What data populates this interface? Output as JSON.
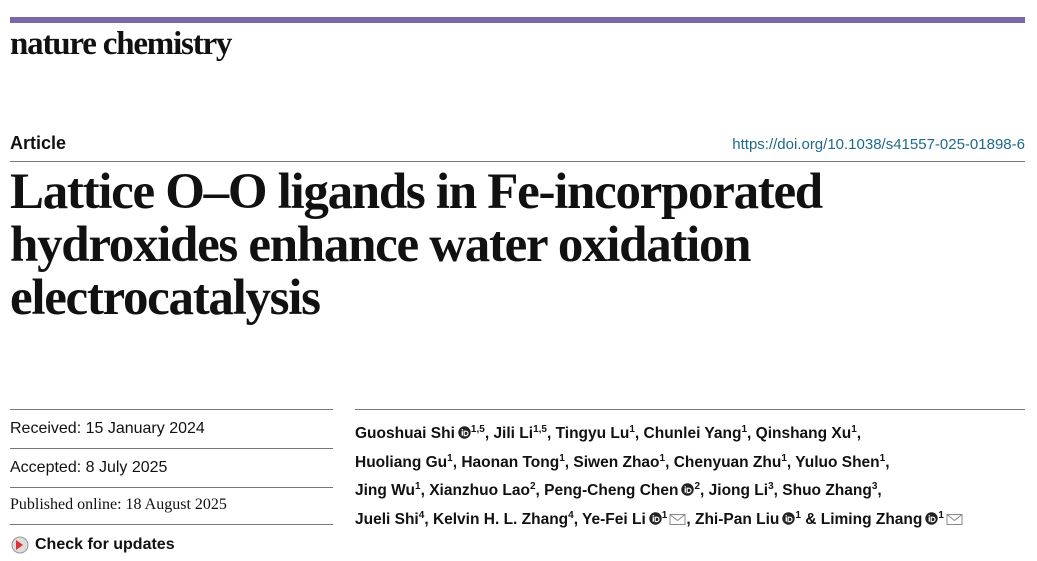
{
  "journal": "nature chemistry",
  "article_type": "Article",
  "doi": "https://doi.org/10.1038/s41557-025-01898-6",
  "title": [
    "Lattice O–O ligands in Fe-incorporated",
    "hydroxides enhance water oxidation",
    "electrocatalysis"
  ],
  "dates": {
    "received": "Received: 15 January 2024",
    "accepted": "Accepted: 8 July 2025",
    "published": "Published online: 18 August 2025"
  },
  "check_updates": "Check for updates",
  "author_lines": [
    [
      {
        "name": "Guoshuai Shi",
        "orcid": true,
        "sup": "1,5",
        "sep": ","
      },
      {
        "name": "Jili Li",
        "sup": "1,5",
        "sep": ","
      },
      {
        "name": "Tingyu Lu",
        "sup": "1",
        "sep": ","
      },
      {
        "name": "Chunlei Yang",
        "sup": "1",
        "sep": ","
      },
      {
        "name": "Qinshang Xu",
        "sup": "1",
        "sep": ","
      }
    ],
    [
      {
        "name": "Huoliang Gu",
        "sup": "1",
        "sep": ","
      },
      {
        "name": "Haonan Tong",
        "sup": "1",
        "sep": ","
      },
      {
        "name": "Siwen Zhao",
        "sup": "1",
        "sep": ","
      },
      {
        "name": "Chenyuan Zhu",
        "sup": "1",
        "sep": ","
      },
      {
        "name": "Yuluo Shen",
        "sup": "1",
        "sep": ","
      }
    ],
    [
      {
        "name": "Jing Wu",
        "sup": "1",
        "sep": ","
      },
      {
        "name": "Xianzhuo Lao",
        "sup": "2",
        "sep": ","
      },
      {
        "name": "Peng-Cheng Chen",
        "orcid": true,
        "sup": "2",
        "sep": ","
      },
      {
        "name": "Jiong Li",
        "sup": "3",
        "sep": ","
      },
      {
        "name": "Shuo Zhang",
        "sup": "3",
        "sep": ","
      }
    ],
    [
      {
        "name": "Jueli Shi",
        "sup": "4",
        "sep": ","
      },
      {
        "name": "Kelvin H. L. Zhang",
        "sup": "4",
        "sep": ","
      },
      {
        "name": "Ye-Fei Li",
        "orcid": true,
        "sup": "1",
        "email": true,
        "sep": ","
      },
      {
        "name": "Zhi-Pan Liu",
        "orcid": true,
        "sup": "1",
        "sep": " &"
      },
      {
        "name": "Liming Zhang",
        "orcid": true,
        "sup": "1",
        "email": true
      }
    ]
  ]
}
